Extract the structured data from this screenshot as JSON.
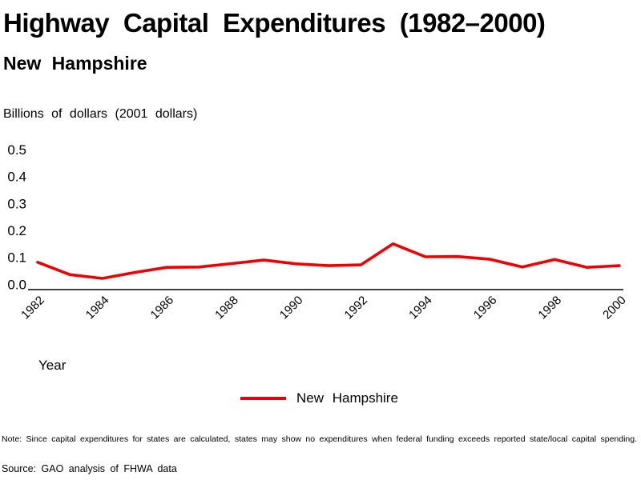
{
  "title": "Highway Capital Expenditures (1982–2000)",
  "subtitle": "New Hampshire",
  "y_axis_unit_label": "Billions of dollars (2001 dollars)",
  "x_axis_label": "Year",
  "legend": {
    "label": "New Hampshire",
    "color": "#ee0000"
  },
  "note": "Note: Since capital expenditures for states are calculated, states may show no expenditures when federal funding exceeds reported state/local capital spending.",
  "source": "Source: GAO analysis of FHWA data",
  "colors": {
    "line": "#ee0000",
    "axis": "#000000",
    "text": "#000000",
    "background": "#ffffff"
  },
  "chart_data": {
    "type": "line",
    "title": "Highway Capital Expenditures (1982–2000)",
    "subtitle": "New Hampshire",
    "xlabel": "Year",
    "ylabel": "Billions of dollars (2001 dollars)",
    "x": [
      1982,
      1983,
      1984,
      1985,
      1986,
      1987,
      1988,
      1989,
      1990,
      1991,
      1992,
      1993,
      1994,
      1995,
      1996,
      1997,
      1998,
      1999,
      2000
    ],
    "series": [
      {
        "name": "New Hampshire",
        "color": "#ee0000",
        "values": [
          0.082,
          0.036,
          0.022,
          0.044,
          0.063,
          0.064,
          0.077,
          0.09,
          0.076,
          0.069,
          0.072,
          0.15,
          0.102,
          0.103,
          0.093,
          0.064,
          0.092,
          0.063,
          0.069
        ]
      }
    ],
    "ylim": [
      0.0,
      0.5
    ],
    "yticks": [
      0.0,
      0.1,
      0.2,
      0.3,
      0.4,
      0.5
    ],
    "xticks": [
      1982,
      1984,
      1986,
      1988,
      1990,
      1992,
      1994,
      1996,
      1998,
      2000
    ],
    "grid": false,
    "legend_position": "bottom"
  }
}
